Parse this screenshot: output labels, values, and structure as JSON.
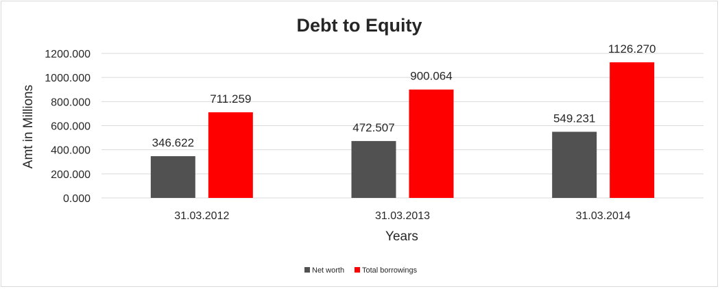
{
  "chart_data": {
    "type": "bar",
    "title": "Debt to Equity",
    "xlabel": "Years",
    "ylabel": "Amt in Millions",
    "categories": [
      "31.03.2012",
      "31.03.2013",
      "31.03.2014"
    ],
    "series": [
      {
        "name": "Net worth",
        "color": "#515151",
        "values": [
          346.622,
          472.507,
          549.231
        ],
        "labels": [
          "346.622",
          "472.507",
          "549.231"
        ]
      },
      {
        "name": "Total borrowings",
        "color": "#ff0000",
        "values": [
          711.259,
          900.064,
          1126.27
        ],
        "labels": [
          "711.259",
          "900.064",
          "1126.270"
        ]
      }
    ],
    "ylim": [
      0,
      1200
    ],
    "yticks": [
      {
        "value": 0,
        "label": "0.000"
      },
      {
        "value": 200,
        "label": "200.000"
      },
      {
        "value": 400,
        "label": "400.000"
      },
      {
        "value": 600,
        "label": "600.000"
      },
      {
        "value": 800,
        "label": "800.000"
      },
      {
        "value": 1000,
        "label": "1000.000"
      },
      {
        "value": 1200,
        "label": "1200.000"
      }
    ],
    "grid": true,
    "legend": "bottom-center",
    "gridColor": "#d9d9d9"
  }
}
